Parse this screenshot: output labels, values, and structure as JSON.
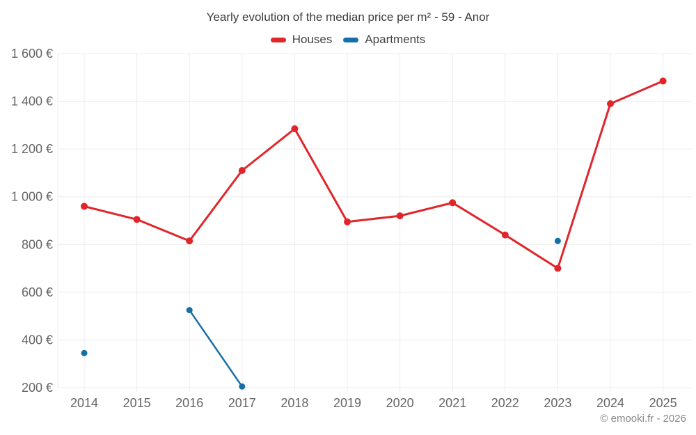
{
  "footer": {
    "copyright": "© emooki.fr - 2026"
  },
  "chart_data": {
    "type": "line",
    "title": "Yearly evolution of the median price per m² - 59 - Anor",
    "categories": [
      "2014",
      "2015",
      "2016",
      "2017",
      "2018",
      "2019",
      "2020",
      "2021",
      "2022",
      "2023",
      "2024",
      "2025"
    ],
    "series": [
      {
        "name": "Houses",
        "color": "#e0262b",
        "values": [
          960,
          905,
          815,
          1110,
          1285,
          895,
          920,
          975,
          840,
          700,
          1390,
          1485
        ]
      },
      {
        "name": "Apartments",
        "color": "#176fa8",
        "values": [
          345,
          null,
          525,
          205,
          null,
          null,
          null,
          null,
          null,
          815,
          null,
          null
        ]
      }
    ],
    "xlabel": "",
    "ylabel": "",
    "ylim": [
      200,
      1600
    ],
    "y_ticks": [
      200,
      400,
      600,
      800,
      1000,
      1200,
      1400,
      1600
    ],
    "y_tick_labels": [
      "200 €",
      "400 €",
      "600 €",
      "800 €",
      "1 000 €",
      "1 200 €",
      "1 400 €",
      "1 600 €"
    ],
    "grid": true,
    "legend_position": "top-center",
    "styles": {
      "grid_color": "#ececec",
      "tick_label_color": "#666666"
    }
  }
}
